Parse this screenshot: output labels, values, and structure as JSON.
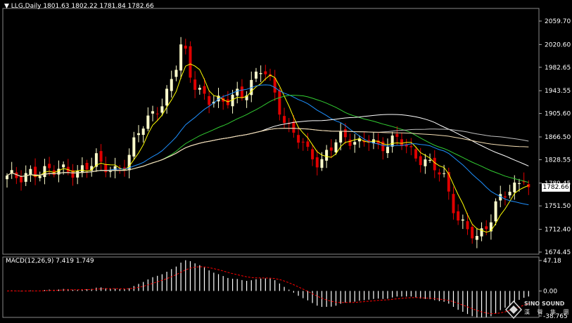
{
  "chart_data": {
    "type": "candlestick",
    "symbol_header": "LLG,Daily",
    "ohlc_header": "1801.63 1802.22 1781.84 1782.66",
    "price_axis_ticks": [
      "2059.70",
      "2020.60",
      "1982.65",
      "1943.55",
      "1905.60",
      "1866.50",
      "1828.55",
      "1789.45",
      "1751.50",
      "1712.40",
      "1674.45"
    ],
    "price_axis_range": [
      1674.45,
      2059.7
    ],
    "current_price": "1782.66",
    "colors": {
      "bull": "#ffffcc",
      "bear": "#e00000",
      "ma_fast": "#ffff00",
      "ma_blue": "#1e90ff",
      "ma_green": "#32cd32",
      "ma_white": "#ffffff",
      "ma_grey": "#c0c0c0",
      "ma_tan": "#f5deb3",
      "macd_bar": "#ffffff",
      "macd_signal": "#ff0000",
      "grid": "#444444"
    },
    "macd": {
      "label": "MACD(12,26,9) 7.419 1.749",
      "axis_ticks": [
        "47.18",
        "0.00",
        "-38.765"
      ],
      "axis_range": [
        -38.765,
        47.18
      ]
    }
  },
  "watermark": {
    "brand": "SINO SOUND",
    "sub": "漢 聲 集 團"
  }
}
